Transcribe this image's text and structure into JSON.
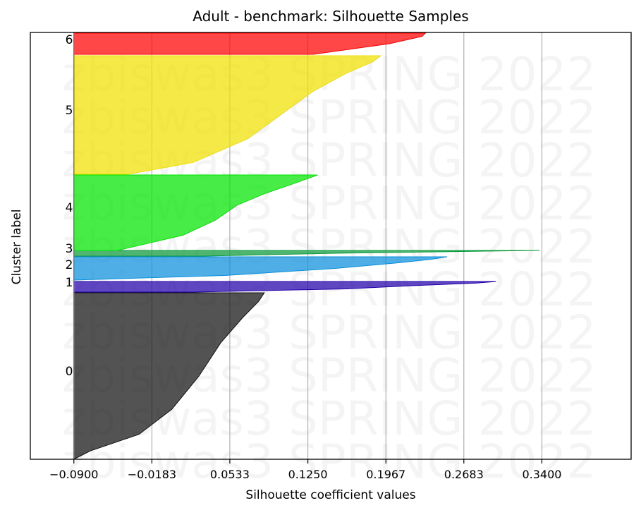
{
  "chart_data": {
    "type": "area",
    "title": "Adult - benchmark: Silhouette Samples",
    "xlabel": "Silhouette coefficient values",
    "ylabel": "Cluster label",
    "xlim": [
      -0.13,
      0.422
    ],
    "x_ticks": [
      "-0.0900",
      "-0.0183",
      "0.0533",
      "0.1250",
      "0.1967",
      "0.2683",
      "0.3400"
    ],
    "x_tick_values": [
      -0.09,
      -0.0183,
      0.0533,
      0.125,
      0.1967,
      0.2683,
      0.34
    ],
    "x_grid": true,
    "y_ticks": [],
    "reference_line": -0.09,
    "watermark": "zbiswas3 SPRING 2022",
    "clusters": [
      {
        "label": "0",
        "color": "#111111",
        "profile": [
          [
            0,
            -0.09
          ],
          [
            0.05,
            -0.075
          ],
          [
            0.15,
            -0.03
          ],
          [
            0.3,
            0.0
          ],
          [
            0.5,
            0.025
          ],
          [
            0.7,
            0.045
          ],
          [
            0.85,
            0.065
          ],
          [
            0.95,
            0.08
          ],
          [
            1,
            0.085
          ]
        ]
      },
      {
        "label": "1",
        "color": "#2200aa",
        "profile": [
          [
            0,
            0.02
          ],
          [
            0.3,
            0.16
          ],
          [
            0.6,
            0.22
          ],
          [
            0.85,
            0.28
          ],
          [
            1,
            0.298
          ]
        ]
      },
      {
        "label": "2",
        "color": "#0a8fdb",
        "profile": [
          [
            0,
            -0.09
          ],
          [
            0.2,
            0.05
          ],
          [
            0.5,
            0.15
          ],
          [
            0.75,
            0.21
          ],
          [
            0.9,
            0.24
          ],
          [
            1,
            0.253
          ]
        ]
      },
      {
        "label": "3",
        "color": "#0a9a3a",
        "profile": [
          [
            0,
            0.03
          ],
          [
            0.5,
            0.15
          ],
          [
            0.9,
            0.3
          ],
          [
            1,
            0.338
          ]
        ]
      },
      {
        "label": "4",
        "color": "#00e500",
        "profile": [
          [
            0,
            -0.05
          ],
          [
            0.2,
            0.01
          ],
          [
            0.4,
            0.04
          ],
          [
            0.6,
            0.06
          ],
          [
            0.75,
            0.085
          ],
          [
            0.9,
            0.115
          ],
          [
            1,
            0.134
          ]
        ]
      },
      {
        "label": "5",
        "color": "#f0e000",
        "profile": [
          [
            0,
            -0.04
          ],
          [
            0.1,
            0.02
          ],
          [
            0.3,
            0.07
          ],
          [
            0.5,
            0.1
          ],
          [
            0.7,
            0.13
          ],
          [
            0.85,
            0.16
          ],
          [
            0.95,
            0.185
          ],
          [
            1,
            0.192
          ]
        ]
      },
      {
        "label": "6",
        "color": "#ff0000",
        "profile": [
          [
            0,
            0.13
          ],
          [
            0.5,
            0.2
          ],
          [
            0.85,
            0.23
          ],
          [
            1,
            0.233
          ]
        ]
      }
    ]
  }
}
